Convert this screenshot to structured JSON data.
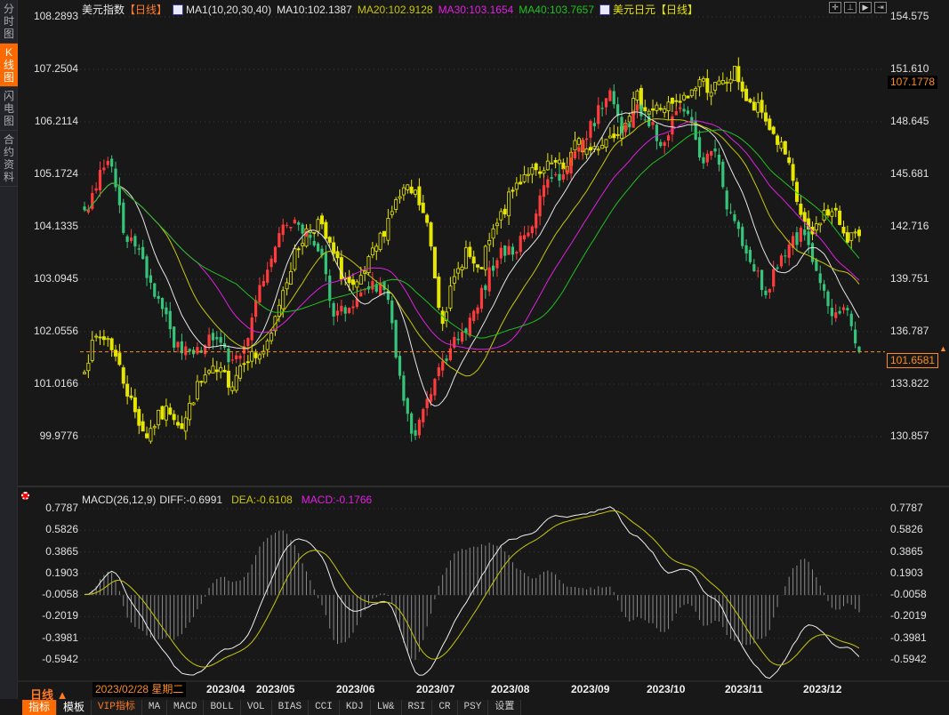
{
  "sidebar": {
    "items": [
      {
        "label": "分时图"
      },
      {
        "label": "K线图",
        "active": true
      },
      {
        "label": "闪电图"
      },
      {
        "label": "合约资料"
      }
    ]
  },
  "legend": {
    "title": "美元指数",
    "period": "【日线】",
    "ma_label": "MA1(10,20,30,40)",
    "ma10": "MA10:102.1387",
    "ma20": "MA20:102.9128",
    "ma30": "MA30:103.1654",
    "ma40": "MA40:103.7657",
    "overlay_title": "美元日元",
    "overlay_period": "【日线】",
    "colors": {
      "ma10": "#e6e6e6",
      "ma20": "#c8c800",
      "ma30": "#e020e0",
      "ma40": "#20c020",
      "overlay": "#e6e600",
      "up": "#ff3b3b",
      "down": "#35c47a"
    }
  },
  "toolbar": {
    "icons": [
      "crosshair-icon",
      "zoom-range-icon",
      "play-icon",
      "exit-icon"
    ]
  },
  "price_labels": {
    "cursor_value": "107.1778",
    "last_price": "101.6581"
  },
  "macd_legend": {
    "title": "MACD(26,12,9)",
    "diff": "DIFF:-0.6991",
    "dea": "DEA:-0.6108",
    "macd": "MACD:-0.1766"
  },
  "period_label": "日线 ▲",
  "cursor_date": "2023/02/28 星期二",
  "x_labels": [
    "2023/04",
    "2023/05",
    "2023/06",
    "2023/07",
    "2023/08",
    "2023/09",
    "2023/10",
    "2023/11",
    "2023/12"
  ],
  "tabs": [
    "指标",
    "模板",
    "VIP指标",
    "MA",
    "MACD",
    "BOLL",
    "VOL",
    "BIAS",
    "CCI",
    "KDJ",
    "LW&",
    "RSI",
    "CR",
    "PSY",
    "设置"
  ],
  "chart_data": [
    {
      "type": "candlestick",
      "name": "美元指数",
      "axis": "left",
      "period": "daily",
      "left_axis_ticks": [
        "108.2893",
        "107.2504",
        "106.2114",
        "105.1724",
        "104.1335",
        "103.0945",
        "102.0556",
        "101.0166",
        "99.9776"
      ],
      "ylim": [
        99.9776,
        108.2893
      ],
      "close_path": [
        104.4,
        105.1,
        105.54,
        104.05,
        103.7,
        102.99,
        102.46,
        101.76,
        101.58,
        101.76,
        102.11,
        101.4,
        101.58,
        102.64,
        103.34,
        104.05,
        104.22,
        103.87,
        103.52,
        102.46,
        102.46,
        102.81,
        102.99,
        102.81,
        101.23,
        99.82,
        100.52,
        101.23,
        101.76,
        102.11,
        102.64,
        103.34,
        103.7,
        103.7,
        104.22,
        104.93,
        105.1,
        105.45,
        105.81,
        106.33,
        106.86,
        105.98,
        106.51,
        106.16,
        105.81,
        106.33,
        106.51,
        105.45,
        105.81,
        104.4,
        103.87,
        103.34,
        102.81,
        103.52,
        103.87,
        104.05,
        102.99,
        102.29,
        102.46,
        101.6581
      ],
      "moving_averages": [
        "MA10",
        "MA20",
        "MA30",
        "MA40"
      ]
    },
    {
      "type": "candlestick",
      "name": "美元日元",
      "axis": "right",
      "period": "daily",
      "right_axis_ticks": [
        "154.575",
        "151.610",
        "148.645",
        "145.681",
        "142.716",
        "139.751",
        "136.787",
        "133.822",
        "130.857"
      ],
      "ylim": [
        130.857,
        154.575
      ],
      "close_path": [
        134.93,
        136.43,
        136.43,
        134.42,
        132.42,
        130.91,
        131.91,
        132.42,
        131.41,
        133.42,
        134.42,
        134.42,
        133.92,
        135.43,
        135.43,
        135.93,
        138.95,
        140.96,
        142.46,
        142.97,
        141.46,
        139.95,
        138.95,
        140.45,
        141.96,
        143.72,
        144.73,
        144.47,
        142.46,
        137.44,
        139.45,
        141.46,
        139.95,
        141.96,
        143.47,
        144.98,
        145.98,
        145.48,
        146.23,
        145.98,
        147.49,
        146.99,
        147.49,
        147.99,
        148.99,
        150.0,
        149.25,
        149.5,
        149.5,
        150.0,
        151.01,
        150.51,
        150.76,
        151.51,
        149.5,
        149.25,
        147.99,
        146.74,
        143.97,
        141.96,
        143.47,
        143.47,
        142.21,
        142.21
      ]
    },
    {
      "type": "line",
      "name": "MACD(26,12,9)",
      "series_names": [
        "DIFF",
        "DEA",
        "MACD"
      ],
      "axis_ticks": [
        "0.7787",
        "0.5826",
        "0.3865",
        "0.1903",
        "-0.0058",
        "-0.2019",
        "-0.3981",
        "-0.5942"
      ],
      "ylim": [
        -0.5942,
        0.7787
      ]
    }
  ]
}
